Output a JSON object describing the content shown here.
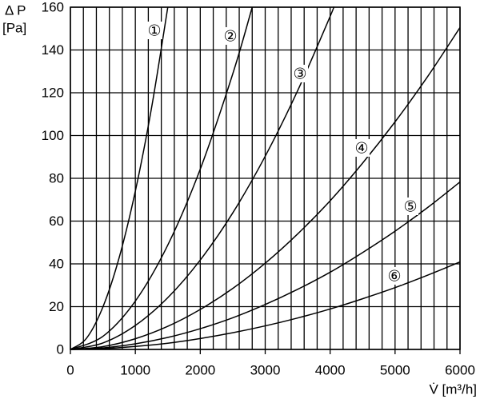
{
  "chart_data": {
    "type": "line",
    "ylabel": [
      "Δ P",
      "[Pa]"
    ],
    "xlabel": "V̇ [m³/h]",
    "xlim": [
      0,
      6000
    ],
    "ylim": [
      0,
      160
    ],
    "xticks": [
      0,
      1000,
      2000,
      3000,
      4000,
      5000,
      6000
    ],
    "yticks": [
      0,
      20,
      40,
      60,
      80,
      100,
      120,
      140,
      160
    ],
    "xgrid": [
      0,
      200,
      400,
      600,
      800,
      1000,
      1200,
      1400,
      1600,
      1800,
      2000,
      2200,
      2400,
      2600,
      2800,
      3000,
      3200,
      3400,
      3600,
      3800,
      4000,
      4200,
      4400,
      4600,
      4800,
      5000,
      5200,
      5400,
      5600,
      5800,
      6000
    ],
    "grid": true,
    "series": [
      {
        "name": "①",
        "color": "#000000",
        "x": [
          0,
          250,
          500,
          750,
          1000,
          1250,
          1500
        ],
        "values": [
          0,
          5.3,
          19.8,
          42.8,
          74,
          113,
          160
        ]
      },
      {
        "name": "②",
        "color": "#000000",
        "x": [
          0,
          500,
          1000,
          1500,
          2000,
          2500,
          2800
        ],
        "values": [
          0,
          6.1,
          22.6,
          48.8,
          84.3,
          128.8,
          160
        ]
      },
      {
        "name": "③",
        "color": "#000000",
        "x": [
          0,
          500,
          1000,
          1500,
          2000,
          2500,
          3000,
          3500,
          4000,
          4050
        ],
        "values": [
          0,
          3.0,
          11.2,
          24.2,
          41.8,
          63.8,
          90.3,
          121,
          155.7,
          160
        ]
      },
      {
        "name": "④",
        "color": "#000000",
        "x": [
          0,
          500,
          1000,
          1500,
          2000,
          2500,
          3000,
          3500,
          4000,
          4500,
          5000,
          5500,
          6000
        ],
        "values": [
          0,
          1.3,
          5,
          10.8,
          18.7,
          28.5,
          40.3,
          54,
          69.5,
          87.1,
          106.4,
          127.5,
          150.5
        ]
      },
      {
        "name": "⑤",
        "color": "#000000",
        "x": [
          0,
          500,
          1000,
          1500,
          2000,
          2500,
          3000,
          3500,
          4000,
          4500,
          5000,
          5500,
          6000
        ],
        "values": [
          0,
          0.7,
          2.6,
          5.6,
          9.7,
          14.8,
          21,
          28.1,
          36.1,
          45.3,
          55.3,
          66.3,
          78.3
        ]
      },
      {
        "name": "⑥",
        "color": "#000000",
        "x": [
          0,
          500,
          1000,
          1500,
          2000,
          2500,
          3000,
          3500,
          4000,
          4500,
          5000,
          5500,
          6000
        ],
        "values": [
          0,
          0.4,
          1.4,
          2.9,
          5.1,
          7.8,
          11,
          14.7,
          18.9,
          23.7,
          28.9,
          34.7,
          40.9
        ]
      }
    ]
  }
}
